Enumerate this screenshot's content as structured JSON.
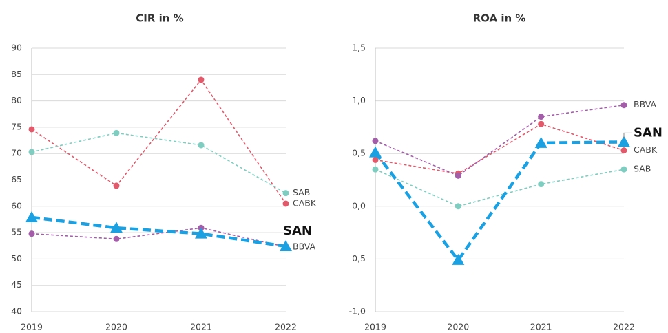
{
  "chart_data": [
    {
      "type": "line",
      "title": "CIR in %",
      "categories": [
        "2019",
        "2020",
        "2021",
        "2022"
      ],
      "series": [
        {
          "name": "CABK",
          "color": "#e05a6b",
          "marker": "circle",
          "values": [
            74.6,
            63.9,
            84.0,
            60.5
          ]
        },
        {
          "name": "SAB",
          "color": "#7fcdc0",
          "marker": "circle",
          "values": [
            70.3,
            73.9,
            71.6,
            62.5
          ]
        },
        {
          "name": "BBVA",
          "color": "#a35da9",
          "marker": "circle",
          "values": [
            54.8,
            53.8,
            55.9,
            52.3
          ]
        },
        {
          "name": "SAN",
          "color": "#1ba0e2",
          "marker": "triangle",
          "values": [
            57.9,
            55.9,
            54.8,
            52.4
          ]
        }
      ],
      "ylim": [
        40,
        90
      ],
      "yticks": [
        40,
        45,
        50,
        55,
        60,
        65,
        70,
        75,
        80,
        85,
        90
      ],
      "grid": true
    },
    {
      "type": "line",
      "title": "ROA in %",
      "categories": [
        "2019",
        "2020",
        "2021",
        "2022"
      ],
      "series": [
        {
          "name": "CABK",
          "color": "#e05a6b",
          "marker": "circle",
          "values": [
            0.44,
            0.31,
            0.78,
            0.53
          ]
        },
        {
          "name": "SAB",
          "color": "#7fcdc0",
          "marker": "circle",
          "values": [
            0.35,
            0.0,
            0.21,
            0.35
          ]
        },
        {
          "name": "BBVA",
          "color": "#a35da9",
          "marker": "circle",
          "values": [
            0.62,
            0.29,
            0.85,
            0.96
          ]
        },
        {
          "name": "SAN",
          "color": "#1ba0e2",
          "marker": "triangle",
          "values": [
            0.51,
            -0.51,
            0.6,
            0.61
          ]
        }
      ],
      "ylim": [
        -1.0,
        1.5
      ],
      "yticks": [
        {
          "value": -1.0,
          "label": "-1,0"
        },
        {
          "value": -0.5,
          "label": "-0,5"
        },
        {
          "value": 0.0,
          "label": "0,0"
        },
        {
          "value": 0.5,
          "label": "0,5"
        },
        {
          "value": 1.0,
          "label": "1,0"
        },
        {
          "value": 1.5,
          "label": "1,5"
        }
      ],
      "grid": true
    }
  ]
}
